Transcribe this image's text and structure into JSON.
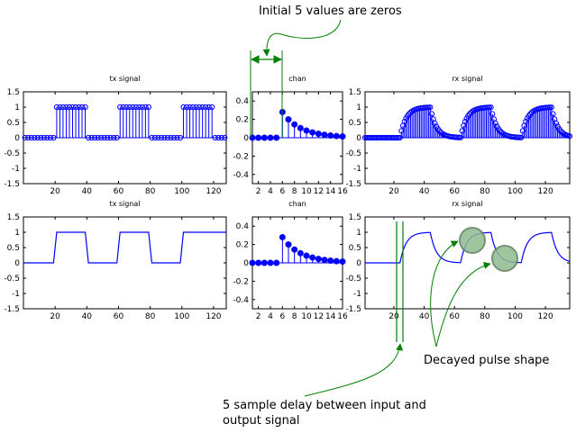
{
  "annotations": {
    "initial_zeros": "Initial 5 values are zeros",
    "decayed_pulse": "Decayed pulse shape",
    "delay_line1": "5 sample delay between input and",
    "delay_line2": "output signal"
  },
  "colors": {
    "signal": "#0000ff",
    "annotation": "#008000",
    "highlight_fill": "#8fbc8f",
    "highlight_stroke": "#5f7f5f"
  },
  "chart_data": [
    {
      "type": "stem",
      "title": "tx signal",
      "xlim": [
        0,
        128
      ],
      "ylim": [
        -1.5,
        1.5
      ],
      "xticks": [
        20,
        40,
        60,
        80,
        100,
        120
      ],
      "yticks": [
        -1.5,
        -1,
        -0.5,
        0,
        0.5,
        1,
        1.5
      ],
      "ytick_labels": [
        "-1.5",
        "-1",
        "-0.5",
        "0",
        "0.5",
        "1",
        "1.5"
      ],
      "pattern": {
        "period": 40,
        "high_start": 20,
        "high_end": 39,
        "start": 1,
        "end": 128,
        "low": 0,
        "high": 1,
        "step": 2
      }
    },
    {
      "type": "stem",
      "title": "chan",
      "xlim": [
        1,
        16
      ],
      "ylim": [
        -0.5,
        0.5
      ],
      "xticks": [
        2,
        4,
        6,
        8,
        10,
        12,
        14,
        16
      ],
      "yticks": [
        -0.4,
        -0.2,
        0,
        0.2,
        0.4
      ],
      "ytick_labels": [
        "-0.4",
        "-0.2",
        "0",
        "0.2",
        "0.4"
      ],
      "x": [
        1,
        2,
        3,
        4,
        5,
        6,
        7,
        8,
        9,
        10,
        11,
        12,
        13,
        14,
        15,
        16
      ],
      "values": [
        0,
        0,
        0,
        0,
        0,
        0.28,
        0.2,
        0.145,
        0.105,
        0.078,
        0.058,
        0.043,
        0.032,
        0.024,
        0.018,
        0.014
      ]
    },
    {
      "type": "stem",
      "title": "rx signal",
      "xlim": [
        1,
        136
      ],
      "ylim": [
        -1.5,
        1.5
      ],
      "xticks": [
        20,
        40,
        60,
        80,
        100,
        120
      ],
      "yticks": [
        -1.5,
        -1,
        -0.5,
        0,
        0.5,
        1,
        1.5
      ],
      "ytick_labels": [
        "-1.5",
        "-1",
        "-0.5",
        "0",
        "0.5",
        "1",
        "1.5"
      ],
      "pattern": {
        "period": 40,
        "rise_start": 25,
        "fall_start": 45,
        "tau": 4,
        "start": 1,
        "end": 136,
        "step": 1
      }
    },
    {
      "type": "line",
      "title": "tx signal",
      "xlim": [
        0,
        128
      ],
      "ylim": [
        -1.5,
        1.5
      ],
      "xticks": [
        20,
        40,
        60,
        80,
        100,
        120
      ],
      "yticks": [
        -1.5,
        -1,
        -0.5,
        0,
        0.5,
        1,
        1.5
      ],
      "ytick_labels": [
        "-1.5",
        "-1",
        "-0.5",
        "0",
        "0.5",
        "1",
        "1.5"
      ],
      "x": [
        0,
        19,
        21,
        39,
        41,
        59,
        61,
        79,
        81,
        99,
        101,
        128
      ],
      "values": [
        0,
        0,
        1,
        1,
        0,
        0,
        1,
        1,
        0,
        0,
        1,
        1
      ]
    },
    {
      "type": "stem",
      "title": "chan",
      "xlim": [
        1,
        16
      ],
      "ylim": [
        -0.5,
        0.5
      ],
      "xticks": [
        2,
        4,
        6,
        8,
        10,
        12,
        14,
        16
      ],
      "yticks": [
        -0.4,
        -0.2,
        0,
        0.2,
        0.4
      ],
      "ytick_labels": [
        "-0.4",
        "-0.2",
        "0",
        "0.2",
        "0.4"
      ],
      "x": [
        1,
        2,
        3,
        4,
        5,
        6,
        7,
        8,
        9,
        10,
        11,
        12,
        13,
        14,
        15,
        16
      ],
      "values": [
        0,
        0,
        0,
        0,
        0,
        0.28,
        0.2,
        0.145,
        0.105,
        0.078,
        0.058,
        0.043,
        0.032,
        0.024,
        0.018,
        0.014
      ]
    },
    {
      "type": "line",
      "title": "rx signal",
      "xlim": [
        1,
        136
      ],
      "ylim": [
        -1.5,
        1.5
      ],
      "xticks": [
        20,
        40,
        60,
        80,
        100,
        120
      ],
      "yticks": [
        -1.5,
        -1,
        -0.5,
        0,
        0.5,
        1,
        1.5
      ],
      "ytick_labels": [
        "-1.5",
        "-1",
        "-0.5",
        "0",
        "0.5",
        "1",
        "1.5"
      ],
      "pattern": {
        "period": 40,
        "rise_start": 25,
        "fall_start": 45,
        "tau": 4,
        "start": 1,
        "end": 136,
        "step": 1
      }
    }
  ]
}
